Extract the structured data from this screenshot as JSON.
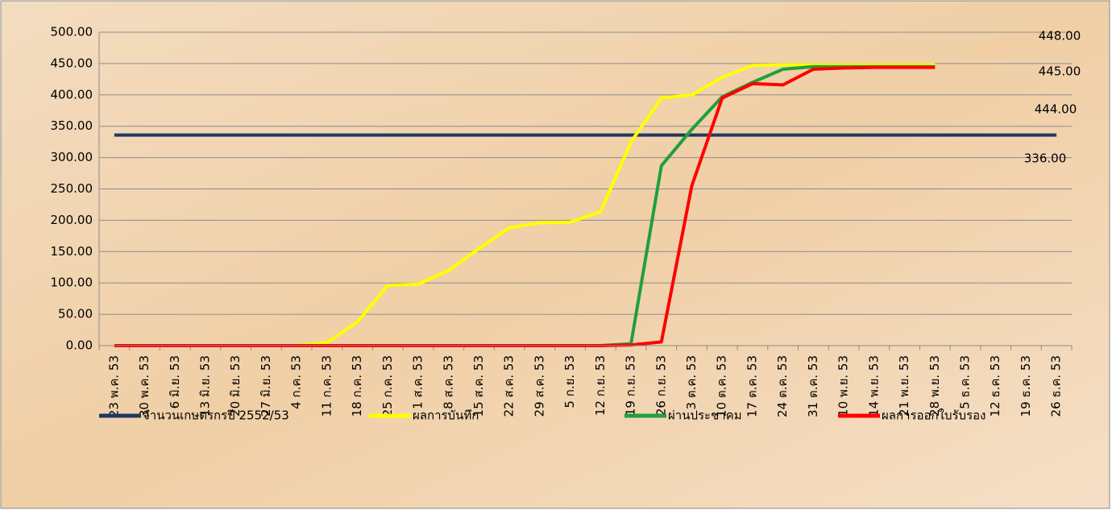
{
  "chart_data": {
    "type": "line",
    "categories": [
      "23 พ.ค. 53",
      "30 พ.ค. 53",
      "6 มิ.ย. 53",
      "13 มิ.ย. 53",
      "20 มิ.ย. 53",
      "27 มิ.ย. 53",
      "4 ก.ค. 53",
      "11 ก.ค. 53",
      "18 ก.ค. 53",
      "25 ก.ค. 53",
      "1 ส.ค. 53",
      "8 ส.ค. 53",
      "15 ส.ค. 53",
      "22 ส.ค. 53",
      "29 ส.ค. 53",
      "5 ก.ย. 53",
      "12 ก.ย. 53",
      "19 ก.ย. 53",
      "26 ก.ย. 53",
      "3 ต.ค. 53",
      "10 ต.ค. 53",
      "17 ต.ค. 53",
      "24 ต.ค. 53",
      "31 ต.ค. 53",
      "10 พ.ย. 53",
      "14 พ.ย. 53",
      "21 พ.ย. 53",
      "28 พ.ย. 53",
      "5 ธ.ค. 53",
      "12 ธ.ค. 53",
      "19 ธ.ค. 53",
      "26 ธ.ค. 53"
    ],
    "series": [
      {
        "name": "จำนวนเกษตรกรปี  2552/53",
        "color": "#1f3864",
        "values": [
          336,
          336,
          336,
          336,
          336,
          336,
          336,
          336,
          336,
          336,
          336,
          336,
          336,
          336,
          336,
          336,
          336,
          336,
          336,
          336,
          336,
          336,
          336,
          336,
          336,
          336,
          336,
          336,
          336,
          336,
          336,
          336
        ]
      },
      {
        "name": "ผลการบันทึก",
        "color": "#ffff00",
        "values": [
          0,
          0,
          0,
          0,
          0,
          0,
          0,
          5,
          38,
          96,
          98,
          120,
          155,
          188,
          196,
          197,
          214,
          325,
          395,
          400,
          428,
          447,
          448,
          448,
          448,
          448,
          448,
          448,
          null,
          null,
          null,
          null
        ]
      },
      {
        "name": "ผ่านประชาคม",
        "color": "#1fa03c",
        "values": [
          0,
          0,
          0,
          0,
          0,
          0,
          0,
          0,
          0,
          0,
          0,
          0,
          0,
          0,
          0,
          0,
          0,
          3,
          287,
          345,
          397,
          420,
          441,
          445,
          445,
          445,
          445,
          445,
          null,
          null,
          null,
          null
        ]
      },
      {
        "name": "ผลการออกใบรับรอง",
        "color": "#ff0000",
        "values": [
          0,
          0,
          0,
          0,
          0,
          0,
          0,
          0,
          0,
          0,
          0,
          0,
          0,
          0,
          0,
          0,
          0,
          1,
          6,
          255,
          395,
          418,
          416,
          441,
          443,
          444,
          444,
          444,
          null,
          null,
          null,
          null
        ]
      }
    ],
    "annotations": [
      {
        "text": "448.00",
        "color": "#000000"
      },
      {
        "text": "445.00",
        "color": "#1fa03c"
      },
      {
        "text": "444.00",
        "color": "#ff0000"
      },
      {
        "text": "336.00",
        "color": "#000000"
      }
    ],
    "ylim": [
      0,
      500
    ],
    "yticks": [
      {
        "value": 0,
        "label": "0.00"
      },
      {
        "value": 50,
        "label": "50.00"
      },
      {
        "value": 100,
        "label": "100.00"
      },
      {
        "value": 150,
        "label": "150.00"
      },
      {
        "value": 200,
        "label": "200.00"
      },
      {
        "value": 250,
        "label": "250.00"
      },
      {
        "value": 300,
        "label": "300.00"
      },
      {
        "value": 350,
        "label": "350.00"
      },
      {
        "value": 400,
        "label": "400.00"
      },
      {
        "value": 450,
        "label": "450.00"
      },
      {
        "value": 500,
        "label": "500.00"
      }
    ],
    "grid": true
  }
}
